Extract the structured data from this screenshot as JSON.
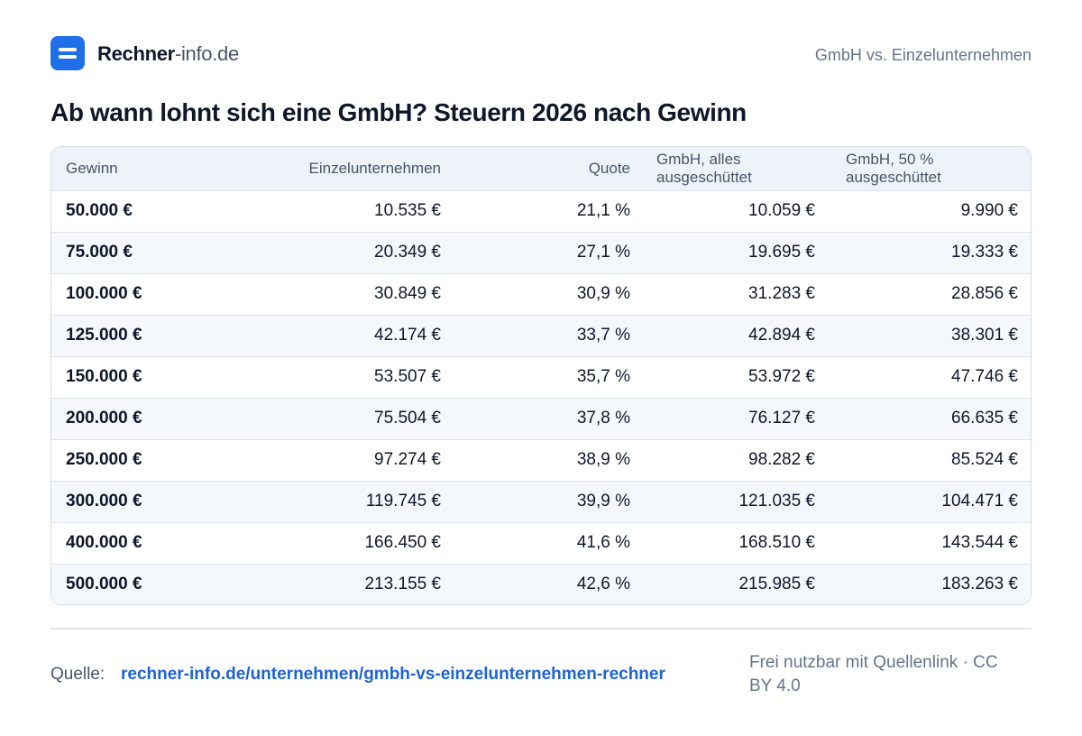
{
  "header": {
    "brand_strong": "Rechner",
    "brand_light": "-info.de",
    "tag": "GmbH vs. Einzelunternehmen"
  },
  "title": "Ab wann lohnt sich eine GmbH? Steuern 2026 nach Gewinn",
  "table": {
    "columns": [
      "Gewinn",
      "Einzelunternehmen",
      "Quote",
      "GmbH, alles ausgeschüttet",
      "GmbH, 50 % ausgeschüttet"
    ],
    "rows": [
      [
        "50.000 €",
        "10.535 €",
        "21,1 %",
        "10.059 €",
        "9.990 €"
      ],
      [
        "75.000 €",
        "20.349 €",
        "27,1 %",
        "19.695 €",
        "19.333 €"
      ],
      [
        "100.000 €",
        "30.849 €",
        "30,9 %",
        "31.283 €",
        "28.856 €"
      ],
      [
        "125.000 €",
        "42.174 €",
        "33,7 %",
        "42.894 €",
        "38.301 €"
      ],
      [
        "150.000 €",
        "53.507 €",
        "35,7 %",
        "53.972 €",
        "47.746 €"
      ],
      [
        "200.000 €",
        "75.504 €",
        "37,8 %",
        "76.127 €",
        "66.635 €"
      ],
      [
        "250.000 €",
        "97.274 €",
        "38,9 %",
        "98.282 €",
        "85.524 €"
      ],
      [
        "300.000 €",
        "119.745 €",
        "39,9 %",
        "121.035 €",
        "104.471 €"
      ],
      [
        "400.000 €",
        "166.450 €",
        "41,6 %",
        "168.510 €",
        "143.544 €"
      ],
      [
        "500.000 €",
        "213.155 €",
        "42,6 %",
        "215.985 €",
        "183.263 €"
      ]
    ]
  },
  "footer": {
    "source_label": "Quelle:",
    "source_link": "rechner-info.de/unternehmen/gmbh-vs-einzelunternehmen-rechner",
    "license": "Frei nutzbar mit Quellenlink · CC BY 4.0"
  }
}
